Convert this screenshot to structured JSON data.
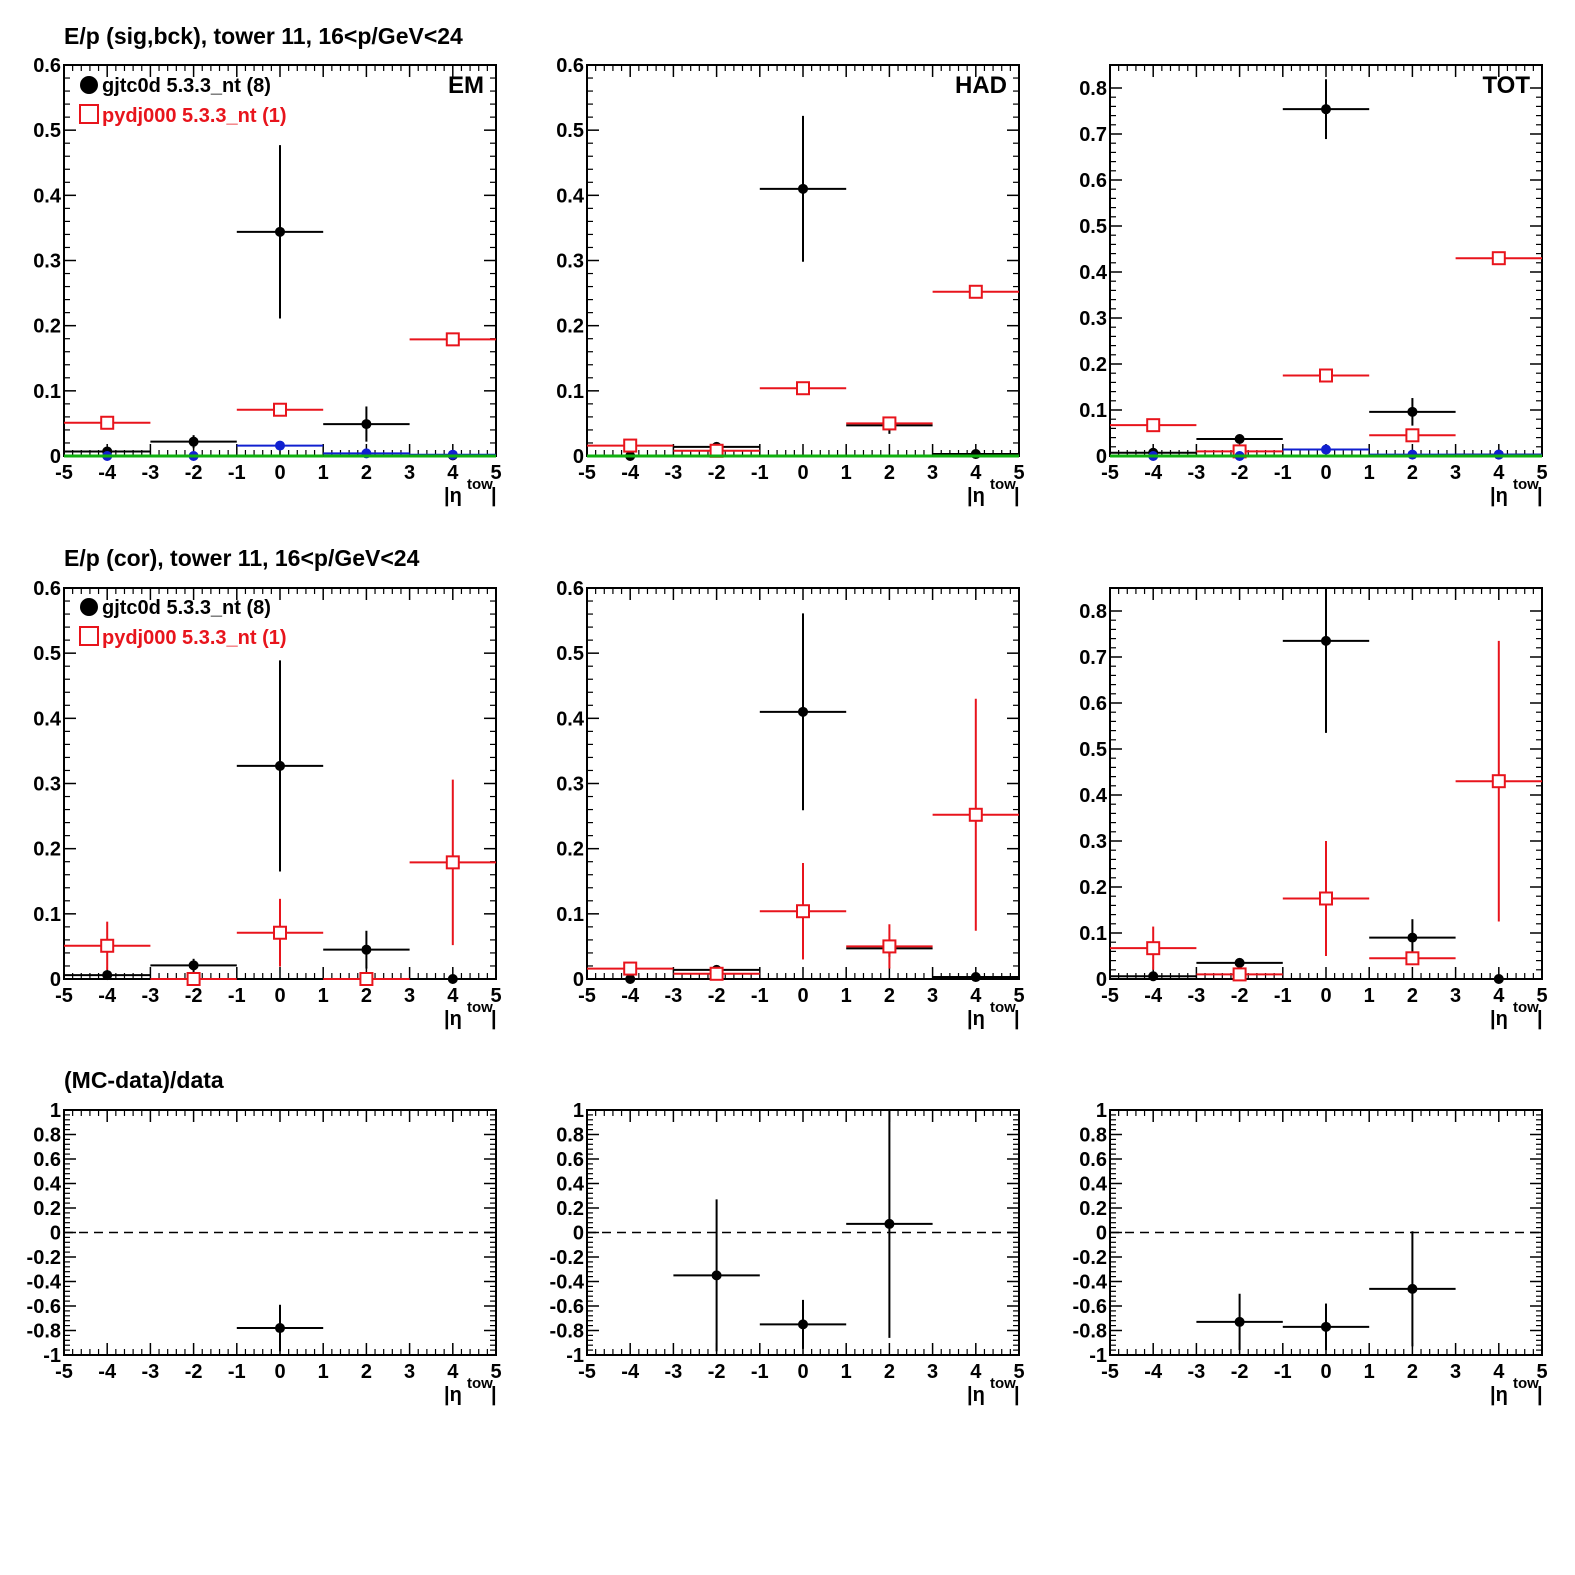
{
  "colors": {
    "data": "#000000",
    "mc": "#e8141c",
    "blue": "#1020d0",
    "green": "#10b010"
  },
  "row_titles": [
    "E/p (sig,bck), tower 11, 16<p/GeV<24",
    "E/p (cor), tower 11, 16<p/GeV<24",
    "(MC-data)/data"
  ],
  "legend": {
    "data": "gjtc0d 5.3.3_nt (8)",
    "mc": "pydj000 5.3.3_nt (1)"
  },
  "panel_labels": [
    "EM",
    "HAD",
    "TOT"
  ],
  "axis": {
    "xlabel_main": "|η",
    "xlabel_sup": "tow",
    "xlabel_end": "|"
  },
  "chart_data": [
    {
      "type": "scatter",
      "id": "sig-em",
      "label": "EM",
      "xlim": [
        -5,
        5
      ],
      "ylim": [
        0,
        0.6
      ],
      "yticks": [
        0,
        0.1,
        0.2,
        0.3,
        0.4,
        0.5,
        0.6
      ],
      "xticks": [
        -5,
        -4,
        -3,
        -2,
        -1,
        0,
        1,
        2,
        3,
        4,
        5
      ],
      "series": [
        {
          "name": "gjtc0d 5.3.3_nt (8)",
          "marker": "dot",
          "color": "data",
          "x": [
            -4,
            -2,
            0,
            2,
            4
          ],
          "xerr": 1,
          "y": [
            0.007,
            0.022,
            0.344,
            0.049,
            0.001
          ],
          "yerr": [
            0.003,
            0.01,
            0.133,
            0.027,
            0.001
          ]
        },
        {
          "name": "pydj000 5.3.3_nt (1)",
          "marker": "square",
          "color": "mc",
          "x": [
            -4,
            0,
            4
          ],
          "xerr": 1,
          "y": [
            0.051,
            0.071,
            0.179
          ],
          "yerr": [
            0.0,
            0.0,
            0.0
          ]
        },
        {
          "marker": "dot",
          "color": "blue",
          "x": [
            -4,
            -2,
            0,
            2,
            4
          ],
          "xerr": 1,
          "y": [
            0.0,
            0.0,
            0.016,
            0.004,
            0.002
          ],
          "yerr": [
            0,
            0,
            0,
            0,
            0
          ]
        },
        {
          "marker": "none",
          "color": "green",
          "x": [
            -4,
            -2,
            0,
            2,
            4
          ],
          "xerr": 1,
          "y": [
            0.0,
            0.0,
            0.0,
            0.0,
            0.0
          ],
          "yerr": [
            0,
            0,
            0,
            0,
            0
          ]
        }
      ]
    },
    {
      "type": "scatter",
      "id": "sig-had",
      "label": "HAD",
      "xlim": [
        -5,
        5
      ],
      "ylim": [
        0,
        0.6
      ],
      "yticks": [
        0,
        0.1,
        0.2,
        0.3,
        0.4,
        0.5,
        0.6
      ],
      "xticks": [
        -5,
        -4,
        -3,
        -2,
        -1,
        0,
        1,
        2,
        3,
        4,
        5
      ],
      "series": [
        {
          "name": "gjtc0d 5.3.3_nt (8)",
          "marker": "dot",
          "color": "data",
          "x": [
            -4,
            -2,
            0,
            2,
            4
          ],
          "xerr": 1,
          "y": [
            0.0,
            0.014,
            0.41,
            0.047,
            0.003
          ],
          "yerr": [
            0.0,
            0.004,
            0.112,
            0.013,
            0.002
          ]
        },
        {
          "name": "pydj000 5.3.3_nt (1)",
          "marker": "square",
          "color": "mc",
          "x": [
            -4,
            -2,
            0,
            2,
            4
          ],
          "xerr": 1,
          "y": [
            0.016,
            0.008,
            0.104,
            0.05,
            0.252
          ],
          "yerr": [
            0.0,
            0.0,
            0.0,
            0.0,
            0.0
          ]
        },
        {
          "marker": "none",
          "color": "green",
          "x": [
            -4,
            -2,
            0,
            2,
            4
          ],
          "xerr": 1,
          "y": [
            0.0,
            0.0,
            0.0,
            0.0,
            0.0
          ],
          "yerr": [
            0,
            0,
            0,
            0,
            0
          ]
        }
      ]
    },
    {
      "type": "scatter",
      "id": "sig-tot",
      "label": "TOT",
      "xlim": [
        -5,
        5
      ],
      "ylim": [
        0,
        0.85
      ],
      "yticks": [
        0,
        0.1,
        0.2,
        0.3,
        0.4,
        0.5,
        0.6,
        0.7,
        0.8
      ],
      "xticks": [
        -5,
        -4,
        -3,
        -2,
        -1,
        0,
        1,
        2,
        3,
        4,
        5
      ],
      "series": [
        {
          "name": "gjtc0d 5.3.3_nt (8)",
          "marker": "dot",
          "color": "data",
          "x": [
            -4,
            -2,
            0,
            2,
            4
          ],
          "xerr": 1,
          "y": [
            0.007,
            0.037,
            0.754,
            0.096,
            0.003
          ],
          "yerr": [
            0.003,
            0.01,
            0.065,
            0.03,
            0.002
          ]
        },
        {
          "name": "pydj000 5.3.3_nt (1)",
          "marker": "square",
          "color": "mc",
          "x": [
            -4,
            -2,
            0,
            2,
            4
          ],
          "xerr": 1,
          "y": [
            0.067,
            0.01,
            0.175,
            0.045,
            0.43
          ],
          "yerr": [
            0.0,
            0.0,
            0.0,
            0.0,
            0.0
          ]
        },
        {
          "marker": "dot",
          "color": "blue",
          "x": [
            -4,
            -2,
            0,
            2,
            4
          ],
          "xerr": 1,
          "y": [
            0.0,
            0.0,
            0.014,
            0.003,
            0.003
          ],
          "yerr": [
            0,
            0,
            0,
            0,
            0
          ]
        },
        {
          "marker": "none",
          "color": "green",
          "x": [
            -4,
            -2,
            0,
            2,
            4
          ],
          "xerr": 1,
          "y": [
            0.0,
            0.0,
            0.0,
            0.0,
            0.0
          ],
          "yerr": [
            0,
            0,
            0,
            0,
            0
          ]
        }
      ]
    },
    {
      "type": "scatter",
      "id": "cor-em",
      "label": "",
      "xlim": [
        -5,
        5
      ],
      "ylim": [
        0,
        0.6
      ],
      "yticks": [
        0,
        0.1,
        0.2,
        0.3,
        0.4,
        0.5,
        0.6
      ],
      "xticks": [
        -5,
        -4,
        -3,
        -2,
        -1,
        0,
        1,
        2,
        3,
        4,
        5
      ],
      "series": [
        {
          "name": "gjtc0d 5.3.3_nt (8)",
          "marker": "dot",
          "color": "data",
          "x": [
            -4,
            -2,
            0,
            2,
            4
          ],
          "xerr": 1,
          "y": [
            0.006,
            0.021,
            0.327,
            0.045,
            0.0
          ],
          "yerr": [
            0.003,
            0.01,
            0.162,
            0.029,
            0.0
          ]
        },
        {
          "name": "pydj000 5.3.3_nt (1)",
          "marker": "square",
          "color": "mc",
          "x": [
            -4,
            -2,
            0,
            2,
            4
          ],
          "xerr": 1,
          "y": [
            0.051,
            0.0,
            0.071,
            0.0,
            0.179
          ],
          "yerr": [
            0.037,
            0.0,
            0.052,
            0.0,
            0.127
          ]
        }
      ]
    },
    {
      "type": "scatter",
      "id": "cor-had",
      "label": "",
      "xlim": [
        -5,
        5
      ],
      "ylim": [
        0,
        0.6
      ],
      "yticks": [
        0,
        0.1,
        0.2,
        0.3,
        0.4,
        0.5,
        0.6
      ],
      "xticks": [
        -5,
        -4,
        -3,
        -2,
        -1,
        0,
        1,
        2,
        3,
        4,
        5
      ],
      "series": [
        {
          "name": "gjtc0d 5.3.3_nt (8)",
          "marker": "dot",
          "color": "data",
          "x": [
            -4,
            -2,
            0,
            2,
            4
          ],
          "xerr": 1,
          "y": [
            0.0,
            0.014,
            0.41,
            0.047,
            0.003
          ],
          "yerr": [
            0.0,
            0.004,
            0.151,
            0.013,
            0.002
          ]
        },
        {
          "name": "pydj000 5.3.3_nt (1)",
          "marker": "square",
          "color": "mc",
          "x": [
            -4,
            -2,
            0,
            2,
            4
          ],
          "xerr": 1,
          "y": [
            0.016,
            0.008,
            0.104,
            0.05,
            0.252
          ],
          "yerr": [
            0.0,
            0.0,
            0.074,
            0.034,
            0.178
          ]
        }
      ]
    },
    {
      "type": "scatter",
      "id": "cor-tot",
      "label": "",
      "xlim": [
        -5,
        5
      ],
      "ylim": [
        0,
        0.85
      ],
      "yticks": [
        0,
        0.1,
        0.2,
        0.3,
        0.4,
        0.5,
        0.6,
        0.7,
        0.8
      ],
      "xticks": [
        -5,
        -4,
        -3,
        -2,
        -1,
        0,
        1,
        2,
        3,
        4,
        5
      ],
      "series": [
        {
          "name": "gjtc0d 5.3.3_nt (8)",
          "marker": "dot",
          "color": "data",
          "x": [
            -4,
            -2,
            0,
            2,
            4
          ],
          "xerr": 1,
          "y": [
            0.006,
            0.035,
            0.735,
            0.09,
            0.0
          ],
          "yerr": [
            0.003,
            0.01,
            0.2,
            0.04,
            0.0
          ]
        },
        {
          "name": "pydj000 5.3.3_nt (1)",
          "marker": "square",
          "color": "mc",
          "x": [
            -4,
            -2,
            0,
            2,
            4
          ],
          "xerr": 1,
          "y": [
            0.067,
            0.01,
            0.175,
            0.045,
            0.43
          ],
          "yerr": [
            0.047,
            0.0,
            0.125,
            0.0,
            0.305
          ]
        }
      ]
    },
    {
      "type": "scatter",
      "id": "ratio-em",
      "label": "",
      "xlim": [
        -5,
        5
      ],
      "ylim": [
        -1,
        1
      ],
      "refline": 0,
      "yticks": [
        -1,
        -0.8,
        -0.6,
        -0.4,
        -0.2,
        0,
        0.2,
        0.4,
        0.6,
        0.8,
        1
      ],
      "xticks": [
        -5,
        -4,
        -3,
        -2,
        -1,
        0,
        1,
        2,
        3,
        4,
        5
      ],
      "series": [
        {
          "marker": "dot",
          "color": "data",
          "x": [
            0
          ],
          "xerr": 1,
          "y": [
            -0.78
          ],
          "yerr": [
            0.19
          ]
        }
      ]
    },
    {
      "type": "scatter",
      "id": "ratio-had",
      "label": "",
      "xlim": [
        -5,
        5
      ],
      "ylim": [
        -1,
        1
      ],
      "refline": 0,
      "yticks": [
        -1,
        -0.8,
        -0.6,
        -0.4,
        -0.2,
        0,
        0.2,
        0.4,
        0.6,
        0.8,
        1
      ],
      "xticks": [
        -5,
        -4,
        -3,
        -2,
        -1,
        0,
        1,
        2,
        3,
        4,
        5
      ],
      "series": [
        {
          "marker": "dot",
          "color": "data",
          "x": [
            -2,
            0,
            2
          ],
          "xerr": 1,
          "y": [
            -0.35,
            -0.75,
            0.07
          ],
          "yerr": [
            0.62,
            0.2,
            0.93
          ]
        }
      ]
    },
    {
      "type": "scatter",
      "id": "ratio-tot",
      "label": "",
      "xlim": [
        -5,
        5
      ],
      "ylim": [
        -1,
        1
      ],
      "refline": 0,
      "yticks": [
        -1,
        -0.8,
        -0.6,
        -0.4,
        -0.2,
        0,
        0.2,
        0.4,
        0.6,
        0.8,
        1
      ],
      "xticks": [
        -5,
        -4,
        -3,
        -2,
        -1,
        0,
        1,
        2,
        3,
        4,
        5
      ],
      "series": [
        {
          "marker": "dot",
          "color": "data",
          "x": [
            -2,
            0,
            2
          ],
          "xerr": 1,
          "y": [
            -0.73,
            -0.77,
            -0.46
          ],
          "yerr": [
            0.23,
            0.19,
            0.47
          ]
        }
      ]
    }
  ]
}
